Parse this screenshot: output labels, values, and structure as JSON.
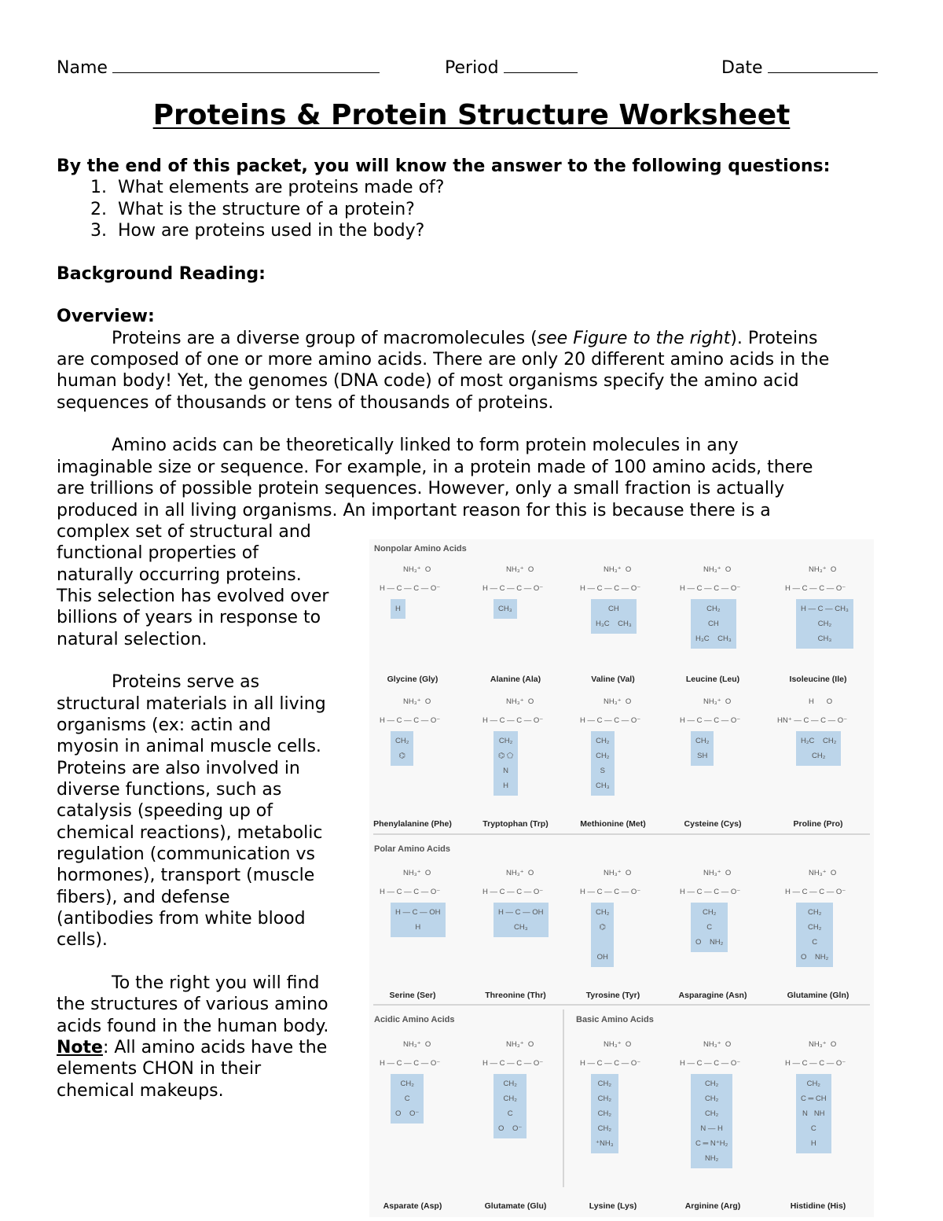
{
  "header": {
    "name_label": "Name",
    "period_label": "Period",
    "date_label": "Date"
  },
  "title": "Proteins & Protein Structure Worksheet",
  "intro": {
    "lead": "By the end of this packet, you will know the answer to the following questions:",
    "questions": [
      "What elements are proteins made of?",
      "What is the structure of a protein?",
      "How are proteins used in the body?"
    ]
  },
  "background_heading": "Background Reading:",
  "overview_heading": "Overview:",
  "para1": {
    "line1_a": "Proteins are a diverse group of macromolecules (",
    "line1_i": "see Figure to the right",
    "line1_b": "). Proteins",
    "lines": [
      "are composed of one or more amino acids. There are only 20 different amino acids in the",
      "human body! Yet, the genomes (DNA code) of most organisms specify the amino acid",
      "sequences of thousands or tens of thousands of proteins."
    ]
  },
  "para2": [
    "Amino acids can be theoretically linked to form protein molecules in any",
    "imaginable size or sequence. For example, in a protein made of 100 amino acids, there",
    "are trillions of possible protein sequences. However, only a small fraction is actually",
    "produced in all living organisms. An important reason for this is because there is a",
    "complex set of structural and",
    "functional properties of",
    "naturally occurring proteins.",
    "This selection has evolved over",
    "billions of years in response to",
    "natural selection."
  ],
  "para3": [
    "Proteins serve as",
    "structural materials in all living",
    "organisms (ex: actin and",
    "myosin in animal muscle cells.",
    "Proteins are also involved in",
    "diverse functions, such as",
    "catalysis (speeding up of",
    "chemical reactions), metabolic",
    "regulation (communication vs",
    "hormones), transport (muscle",
    "fibers), and defense",
    "(antibodies from white blood",
    "cells)."
  ],
  "para4": {
    "lines": [
      "To the right you will find",
      "the structures of various amino",
      "acids found in the human body."
    ],
    "note_label": "Note",
    "note_rest": ": All amino acids have the",
    "tail": [
      "elements CHON in their",
      "chemical makeups."
    ]
  },
  "figure": {
    "colors": {
      "highlight": "#bcd5ea",
      "background": "#f8f8f8"
    },
    "sections": [
      {
        "heading": "Nonpolar Amino Acids",
        "acids": [
          {
            "name": "Glycine (Gly)",
            "side": [
              "H"
            ]
          },
          {
            "name": "Alanine (Ala)",
            "side": [
              "CH₃"
            ]
          },
          {
            "name": "Valine (Val)",
            "side": [
              "CH",
              "H₃C    CH₃"
            ]
          },
          {
            "name": "Leucine (Leu)",
            "side": [
              "CH₂",
              "CH",
              "H₃C    CH₃"
            ]
          },
          {
            "name": "Isoleucine (Ile)",
            "side": [
              "H — C — CH₃",
              "CH₂",
              "CH₃"
            ]
          },
          {
            "name": "Phenylalanine (Phe)",
            "side": [
              "CH₂",
              "⌬",
              ""
            ]
          },
          {
            "name": "Tryptophan (Trp)",
            "side": [
              "CH₂",
              "⌬ ⬠",
              "N",
              "H"
            ]
          },
          {
            "name": "Methionine (Met)",
            "side": [
              "CH₂",
              "CH₂",
              "S",
              "CH₃"
            ]
          },
          {
            "name": "Cysteine (Cys)",
            "side": [
              "CH₂",
              "SH"
            ]
          },
          {
            "name": "Proline (Pro)",
            "side": [
              "H₂C    CH₂",
              "CH₂"
            ],
            "proline": true
          }
        ]
      },
      {
        "heading": "Polar Amino Acids",
        "acids": [
          {
            "name": "Serine (Ser)",
            "side": [
              "H — C — OH",
              "H"
            ]
          },
          {
            "name": "Threonine (Thr)",
            "side": [
              "H — C — OH",
              "CH₃"
            ]
          },
          {
            "name": "Tyrosine (Tyr)",
            "side": [
              "CH₂",
              "⌬",
              "",
              "OH"
            ]
          },
          {
            "name": "Asparagine (Asn)",
            "side": [
              "CH₂",
              "C",
              "O    NH₂"
            ]
          },
          {
            "name": "Glutamine (Gln)",
            "side": [
              "CH₂",
              "CH₂",
              "C",
              "O    NH₂"
            ]
          }
        ]
      },
      {
        "heading": "Acidic Amino Acids",
        "acids": [
          {
            "name": "Asparate (Asp)",
            "side": [
              "CH₂",
              "C",
              "O    O⁻"
            ]
          },
          {
            "name": "Glutamate (Glu)",
            "side": [
              "CH₂",
              "CH₂",
              "C",
              "O    O⁻"
            ]
          }
        ]
      },
      {
        "heading": "Basic Amino Acids",
        "acids": [
          {
            "name": "Lysine (Lys)",
            "side": [
              "CH₂",
              "CH₂",
              "CH₂",
              "CH₂",
              "⁺NH₃"
            ]
          },
          {
            "name": "Arginine (Arg)",
            "side": [
              "CH₂",
              "CH₂",
              "CH₂",
              "N — H",
              "C ═ N⁺H₂",
              "NH₂"
            ]
          },
          {
            "name": "Histidine (His)",
            "side": [
              "CH₂",
              "C ═ CH",
              "N   NH",
              "C",
              "H"
            ]
          }
        ]
      }
    ],
    "backbone": {
      "top": "NH₃⁺  O",
      "main": "H — C — C — O⁻"
    },
    "proline_backbone": {
      "top": "H      O",
      "main": "HN⁺ — C — C — O⁻"
    }
  }
}
